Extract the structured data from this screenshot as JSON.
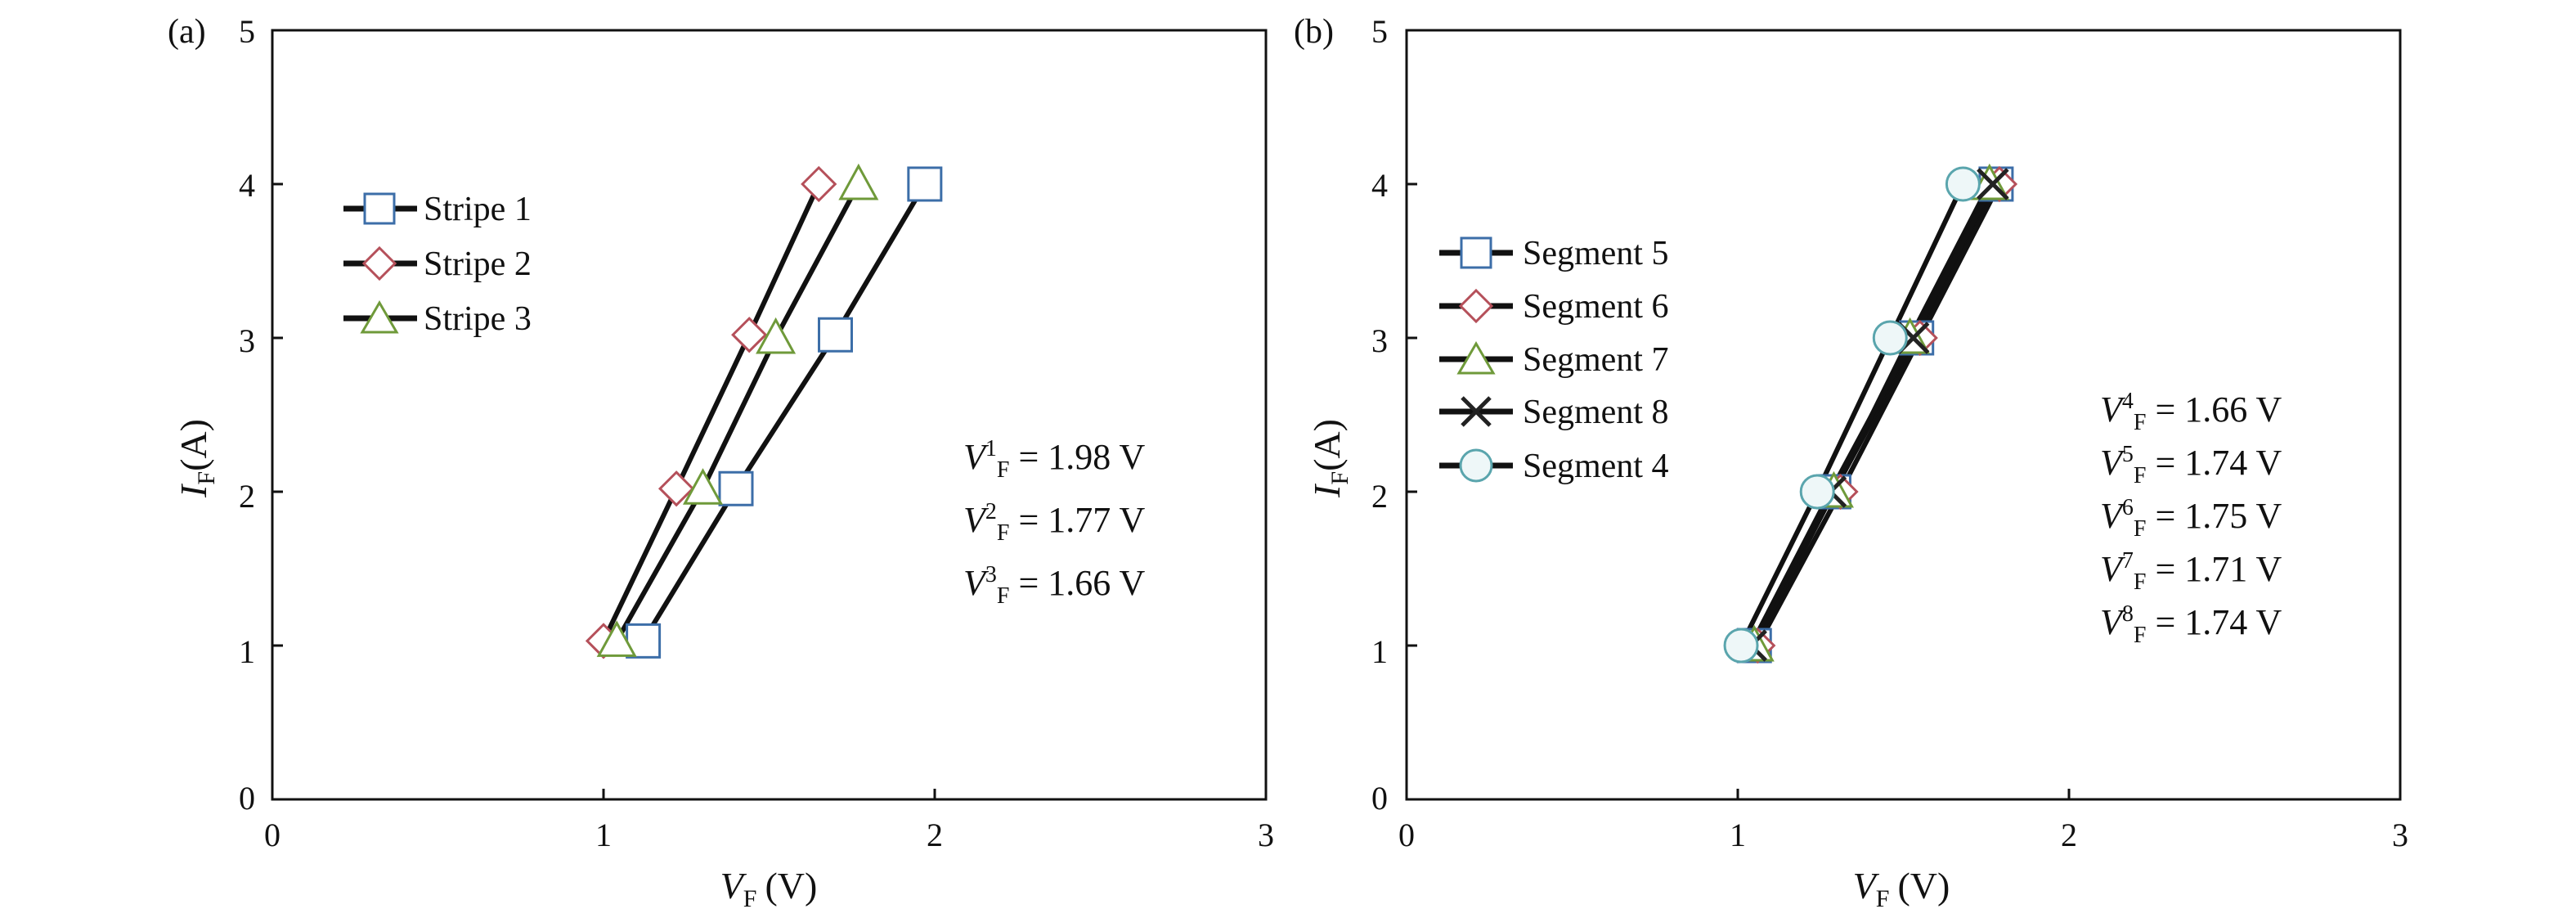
{
  "chart_data": [
    {
      "type": "line",
      "panel_label": "(a)",
      "xlabel": {
        "symbol": "V",
        "subscript": "F",
        "unit": "(V)"
      },
      "ylabel": {
        "symbol": "I",
        "subscript": "F",
        "unit": "(A)"
      },
      "xlim": [
        0,
        3
      ],
      "ylim": [
        0,
        5
      ],
      "xticks": [
        "0",
        "1",
        "2",
        "3"
      ],
      "yticks": [
        "0",
        "1",
        "2",
        "3",
        "4",
        "5"
      ],
      "grid": false,
      "legend_position": "top-left",
      "series": [
        {
          "name": "Stripe 1",
          "marker": "square",
          "color": "#3c6ea8",
          "points": [
            [
              1.12,
              1.03
            ],
            [
              1.4,
              2.02
            ],
            [
              1.7,
              3.02
            ],
            [
              1.97,
              4.0
            ]
          ]
        },
        {
          "name": "Stripe 2",
          "marker": "diamond",
          "color": "#b5505a",
          "points": [
            [
              1.0,
              1.03
            ],
            [
              1.22,
              2.02
            ],
            [
              1.44,
              3.02
            ],
            [
              1.65,
              4.0
            ]
          ]
        },
        {
          "name": "Stripe 3",
          "marker": "triangle",
          "color": "#6f9a3a",
          "points": [
            [
              1.04,
              1.03
            ],
            [
              1.3,
              2.02
            ],
            [
              1.52,
              3.0
            ],
            [
              1.77,
              4.0
            ]
          ]
        }
      ],
      "annotations": [
        {
          "sym": "V",
          "sup": "1",
          "sub": "F",
          "text": " = 1.98 V"
        },
        {
          "sym": "V",
          "sup": "2",
          "sub": "F",
          "text": " = 1.77 V"
        },
        {
          "sym": "V",
          "sup": "3",
          "sub": "F",
          "text": " = 1.66 V"
        }
      ]
    },
    {
      "type": "line",
      "panel_label": "(b)",
      "xlabel": {
        "symbol": "V",
        "subscript": "F",
        "unit": "(V)"
      },
      "ylabel": {
        "symbol": "I",
        "subscript": "F",
        "unit": "(A)"
      },
      "xlim": [
        0,
        3
      ],
      "ylim": [
        0,
        5
      ],
      "xticks": [
        "0",
        "1",
        "2",
        "3"
      ],
      "yticks": [
        "0",
        "1",
        "2",
        "3",
        "4",
        "5"
      ],
      "grid": false,
      "legend_position": "top-left",
      "series": [
        {
          "name": "Segment 5",
          "marker": "square",
          "color": "#3c6ea8",
          "points": [
            [
              1.05,
              1.0
            ],
            [
              1.29,
              2.0
            ],
            [
              1.54,
              3.0
            ],
            [
              1.78,
              4.0
            ]
          ]
        },
        {
          "name": "Segment 6",
          "marker": "diamond",
          "color": "#b5505a",
          "points": [
            [
              1.06,
              1.0
            ],
            [
              1.31,
              2.0
            ],
            [
              1.55,
              3.0
            ],
            [
              1.79,
              4.0
            ]
          ]
        },
        {
          "name": "Segment 7",
          "marker": "triangle",
          "color": "#6f9a3a",
          "points": [
            [
              1.05,
              1.0
            ],
            [
              1.29,
              2.0
            ],
            [
              1.52,
              3.0
            ],
            [
              1.76,
              4.0
            ]
          ]
        },
        {
          "name": "Segment 8",
          "marker": "x",
          "color": "#222222",
          "points": [
            [
              1.04,
              1.0
            ],
            [
              1.28,
              2.0
            ],
            [
              1.53,
              3.0
            ],
            [
              1.77,
              4.0
            ]
          ]
        },
        {
          "name": "Segment 4",
          "marker": "circle",
          "color": "#5aa5ad",
          "points": [
            [
              1.01,
              1.0
            ],
            [
              1.24,
              2.0
            ],
            [
              1.46,
              3.0
            ],
            [
              1.68,
              4.0
            ]
          ]
        }
      ],
      "annotations": [
        {
          "sym": "V",
          "sup": "4",
          "sub": "F",
          "text": " = 1.66 V"
        },
        {
          "sym": "V",
          "sup": "5",
          "sub": "F",
          "text": " = 1.74 V"
        },
        {
          "sym": "V",
          "sup": "6",
          "sub": "F",
          "text": " = 1.75 V"
        },
        {
          "sym": "V",
          "sup": "7",
          "sub": "F",
          "text": " = 1.71 V"
        },
        {
          "sym": "V",
          "sup": "8",
          "sub": "F",
          "text": " = 1.74 V"
        }
      ]
    }
  ]
}
